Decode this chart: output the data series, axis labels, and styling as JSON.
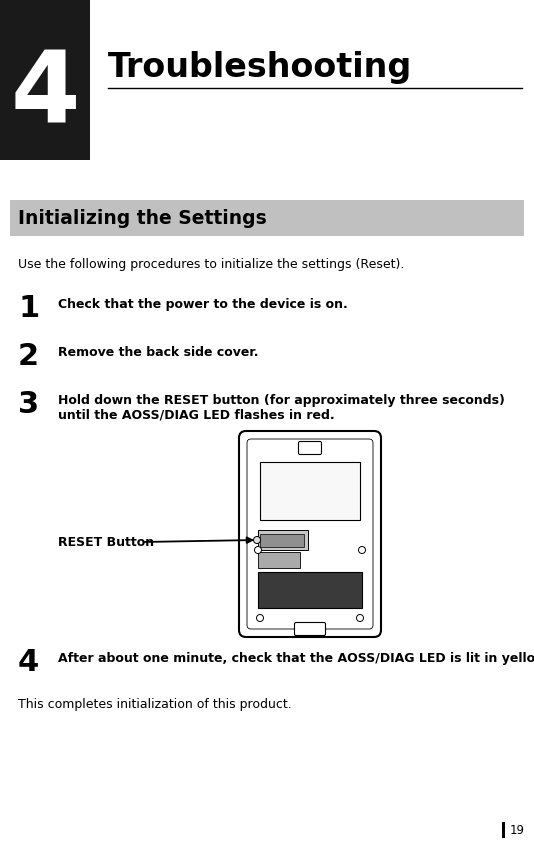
{
  "bg_color": "#ffffff",
  "chapter_box_color": "#1a1a1a",
  "chapter_number": "4",
  "chapter_title": "Troubleshooting",
  "section_bg_color": "#c0c0c0",
  "section_title": "Initializing the Settings",
  "intro_text": "Use the following procedures to initialize the settings (Reset).",
  "steps": [
    {
      "number": "1",
      "text": "Check that the power to the device is on.",
      "text2": ""
    },
    {
      "number": "2",
      "text": "Remove the back side cover.",
      "text2": ""
    },
    {
      "number": "3",
      "text": "Hold down the RESET button (for approximately three seconds)",
      "text2": "until the AOSS/DIAG LED flashes in red."
    },
    {
      "number": "4",
      "text": "After about one minute, check that the AOSS/DIAG LED is lit in yellow.",
      "text2": ""
    }
  ],
  "reset_label": "RESET Button",
  "completion_text": "This completes initialization of this product.",
  "page_number": "19",
  "line_color": "#000000",
  "text_color": "#000000",
  "device_outline_color": "#000000",
  "device_fill_color": "#ffffff",
  "device_dark_color": "#3a3a3a",
  "device_mid_color": "#909090",
  "device_light_gray": "#aaaaaa",
  "device_lighter_gray": "#c8c8c8"
}
